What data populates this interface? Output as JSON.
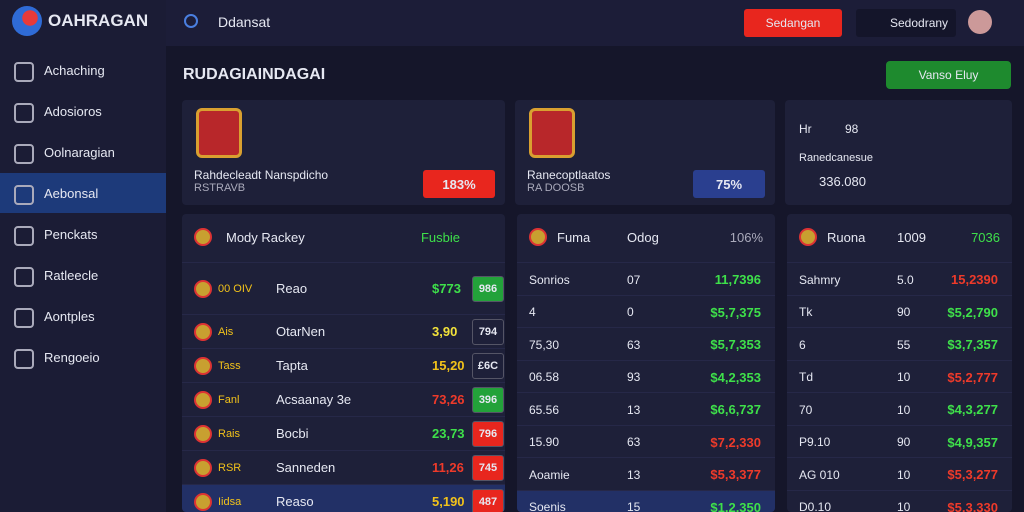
{
  "sidebar": {
    "logo": "OAHRAGAN",
    "items": [
      "Achaching",
      "Adosioros",
      "Oolnaragian",
      "Aebonsal",
      "Penckats",
      "Ratleecle",
      "Aontples",
      "Rengoeio"
    ]
  },
  "topbar": {
    "search": "Ddansat",
    "button": "Sedangan",
    "user": "Sedodrany"
  },
  "page": {
    "title": "RUDAGIAINDAGAI",
    "action": "Vanso Eluy"
  },
  "cards": [
    {
      "text": "Rahdecleadt Nanspdicho",
      "sub": "RSTRAVB",
      "badge": "183%",
      "badge_color": "#e8261e"
    },
    {
      "text": "Ranecoptlaatos",
      "sub": "RA DOOSB",
      "badge": "75%",
      "badge_color": "#2a3f8f"
    },
    {
      "label": "Hr",
      "num": "98",
      "text": "Ranedcanesue",
      "sub": "336.080"
    }
  ],
  "tables": [
    {
      "header": [
        "Mody Rackey",
        "Fusbie"
      ],
      "rows": [
        [
          "00 OIV",
          "Reao",
          "$773",
          "986",
          "#3ee04a",
          "#23a23a"
        ],
        [
          "Ais",
          "OtarNen",
          "3,90",
          "794",
          "#f2e23a",
          ""
        ],
        [
          "Tass",
          "Tapta",
          "15,20",
          "£6C",
          "#f2c21a",
          ""
        ],
        [
          "Fanl",
          "Acsaanay 3e",
          "73,26",
          "396",
          "#ee3a2a",
          "#23a23a"
        ],
        [
          "Rais",
          "Bocbi",
          "23,73",
          "796",
          "#3ee04a",
          "#e8261e"
        ],
        [
          "RSR",
          "Sanneden",
          "11,26",
          "745",
          "#ee3a2a",
          "#e8261e"
        ],
        [
          "Iidsa",
          "Reaso",
          "5,190",
          "487",
          "#f2c21a",
          "#e8261e"
        ]
      ]
    },
    {
      "header": [
        "Fuma",
        "Odog",
        "106%"
      ],
      "rows": [
        [
          "Sonrios",
          "07",
          "11,7396",
          "#3ee04a"
        ],
        [
          "4",
          "0",
          "$5,7,375",
          "#3ee04a"
        ],
        [
          "75,30",
          "63",
          "$5,7,353",
          "#3ee04a"
        ],
        [
          "06.58",
          "93",
          "$4,2,353",
          "#3ee04a"
        ],
        [
          "65.56",
          "13",
          "$6,6,737",
          "#3ee04a"
        ],
        [
          "15.90",
          "63",
          "$7,2,330",
          "#ee3a2a"
        ],
        [
          "Aoamie",
          "13",
          "$5,3,377",
          "#ee3a2a"
        ],
        [
          "Soenis",
          "15",
          "$1,2,350",
          "#3ee04a"
        ]
      ]
    },
    {
      "header": [
        "Ruona",
        "1009",
        "7036"
      ],
      "rows": [
        [
          "Sahmry",
          "5.0",
          "15,2390",
          "#ee3a2a"
        ],
        [
          "Tk",
          "90",
          "$5,2,790",
          "#3ee04a"
        ],
        [
          "6",
          "55",
          "$3,7,357",
          "#3ee04a"
        ],
        [
          "Td",
          "10",
          "$5,2,777",
          "#ee3a2a"
        ],
        [
          "70",
          "10",
          "$4,3,277",
          "#3ee04a"
        ],
        [
          "P9.10",
          "90",
          "$4,9,357",
          "#3ee04a"
        ],
        [
          "AG 010",
          "10",
          "$5,3,277",
          "#ee3a2a"
        ],
        [
          "D0.10",
          "10",
          "$5,3,330",
          "#ee3a2a"
        ]
      ]
    }
  ]
}
